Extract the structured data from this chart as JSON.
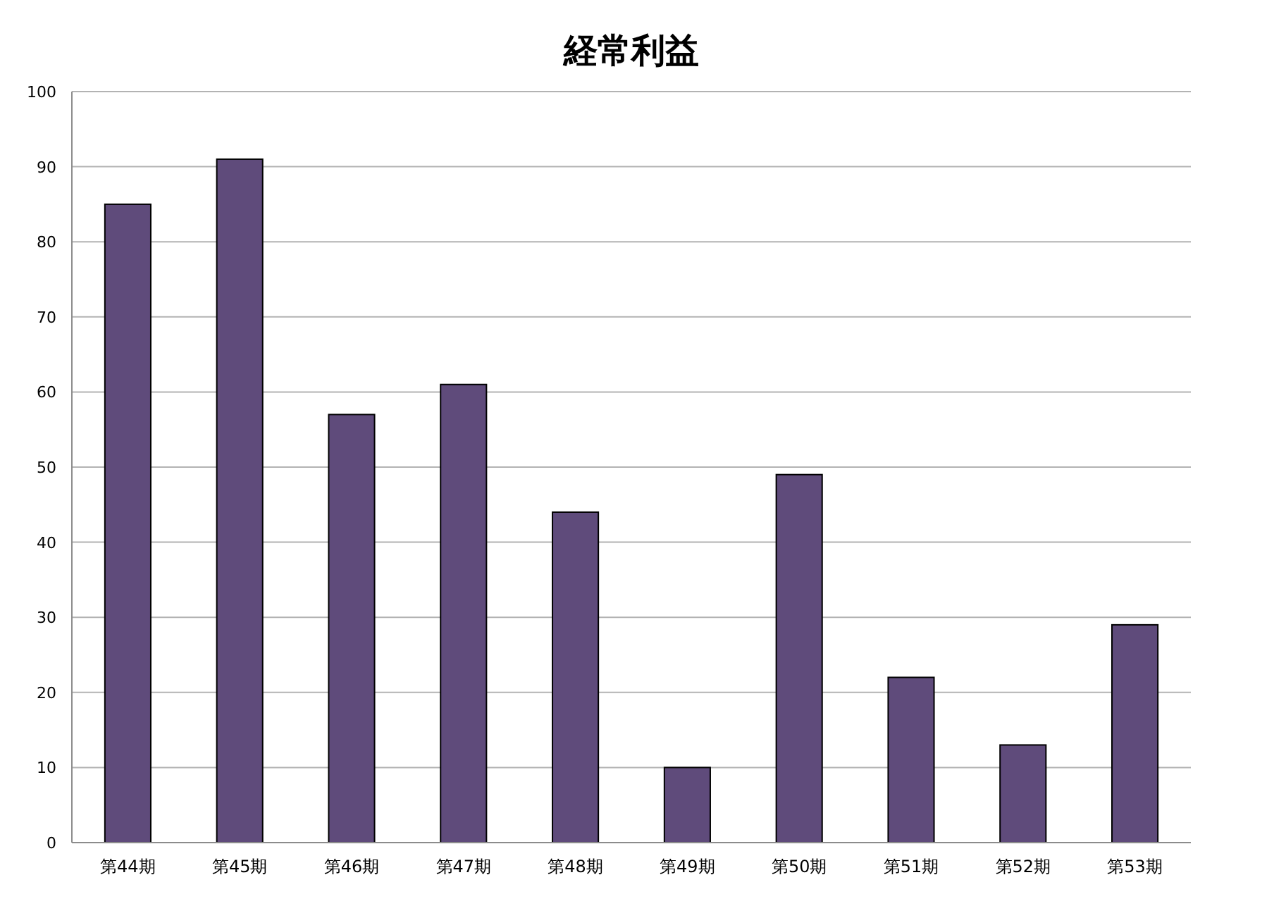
{
  "chart_data": {
    "type": "bar",
    "title": "経常利益",
    "categories": [
      "第44期",
      "第45期",
      "第46期",
      "第47期",
      "第48期",
      "第49期",
      "第50期",
      "第51期",
      "第52期",
      "第53期"
    ],
    "values": [
      85,
      91,
      57,
      61,
      44,
      10,
      49,
      22,
      13,
      29
    ],
    "color": "#5f4b7b",
    "ylim": [
      0,
      100
    ],
    "yticks": [
      0,
      10,
      20,
      30,
      40,
      50,
      60,
      70,
      80,
      90,
      100
    ],
    "grid": "y"
  }
}
